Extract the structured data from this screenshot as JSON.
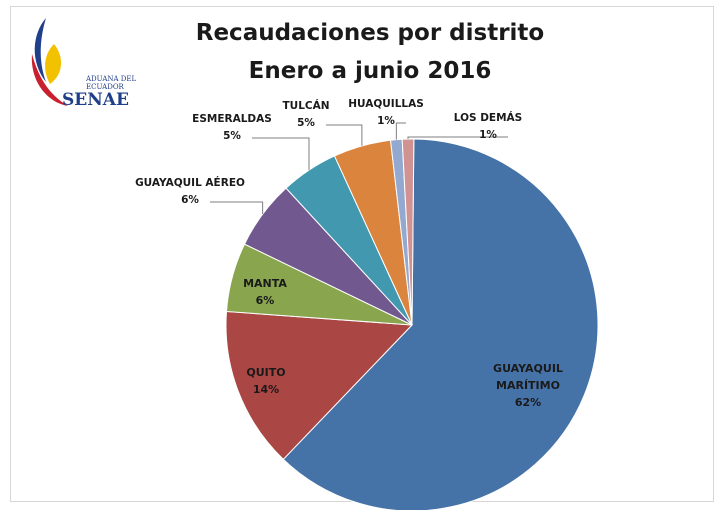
{
  "chart_data": {
    "type": "pie",
    "title": "Recaudaciones por distrito",
    "subtitle": "Enero a junio 2016",
    "slices": [
      {
        "name": "GUAYAQUIL MARÍTIMO",
        "value": 62,
        "pct_label": "62%",
        "color": "#4572a7",
        "label_lines": [
          "GUAYAQUIL",
          "MARÍTIMO"
        ]
      },
      {
        "name": "QUITO",
        "value": 14,
        "pct_label": "14%",
        "color": "#aa4643",
        "label_lines": [
          "QUITO"
        ]
      },
      {
        "name": "MANTA",
        "value": 6,
        "pct_label": "6%",
        "color": "#89a54e",
        "label_lines": [
          "MANTA"
        ]
      },
      {
        "name": "GUAYAQUIL AÉREO",
        "value": 6,
        "pct_label": "6%",
        "color": "#71588f",
        "label_lines": [
          "GUAYAQUIL AÉREO"
        ]
      },
      {
        "name": "ESMERALDAS",
        "value": 5,
        "pct_label": "5%",
        "color": "#4198af",
        "label_lines": [
          "ESMERALDAS"
        ]
      },
      {
        "name": "TULCÁN",
        "value": 5,
        "pct_label": "5%",
        "color": "#db843d",
        "label_lines": [
          "TULCÁN"
        ]
      },
      {
        "name": "HUAQUILLAS",
        "value": 1,
        "pct_label": "1%",
        "color": "#93a9cf",
        "label_lines": [
          "HUAQUILLAS"
        ]
      },
      {
        "name": "LOS DEMÁS",
        "value": 1,
        "pct_label": "1%",
        "color": "#d19392",
        "label_lines": [
          "LOS DEMÁS"
        ]
      }
    ]
  },
  "logo": {
    "line1": "ADUANA DEL",
    "line2": "ECUADOR",
    "line3": "SENAE",
    "colors": {
      "blue": "#1f3f8a",
      "red": "#c8202e",
      "yellow": "#f2c200"
    }
  }
}
